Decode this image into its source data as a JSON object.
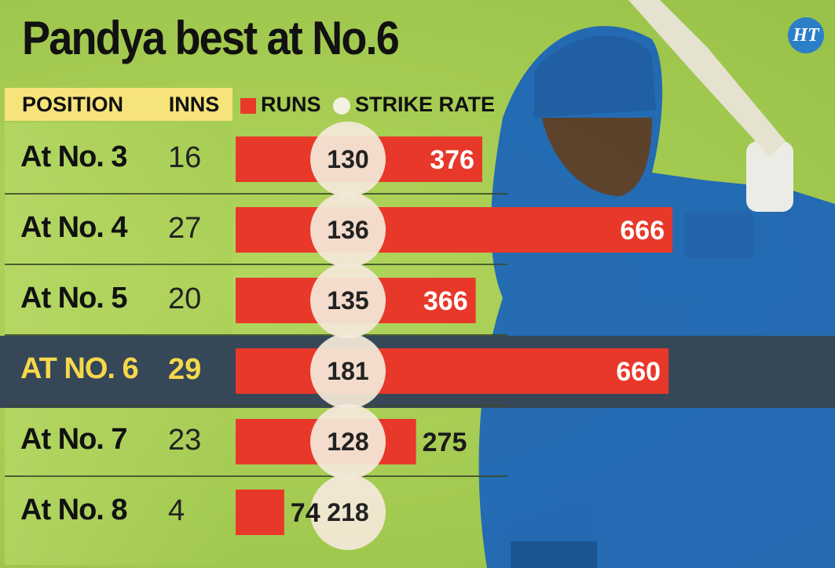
{
  "title": "Pandya best at No.6",
  "logo_text": "HT",
  "headers": {
    "position": "POSITION",
    "inns": "INNS",
    "runs": "RUNS",
    "strike_rate": "STRIKE RATE"
  },
  "colors": {
    "runs_bar": "#e8382a",
    "strike_circle": "#f4e8d8",
    "highlight_band": "#364858",
    "highlight_text": "#f6d84a",
    "header_band": "#f6e37a"
  },
  "rows": [
    {
      "position": "At No. 3",
      "inns": "16"
    },
    {
      "position": "At No. 4",
      "inns": "27"
    },
    {
      "position": "At No. 5",
      "inns": "20"
    },
    {
      "position": "AT NO. 6",
      "inns": "29",
      "highlight": true
    },
    {
      "position": "At No. 7",
      "inns": "23"
    },
    {
      "position": "At No. 8",
      "inns": "4"
    }
  ],
  "chart_data": {
    "type": "bar",
    "orientation": "horizontal",
    "title": "Pandya best at No.6",
    "categories": [
      "At No. 3",
      "At No. 4",
      "At No. 5",
      "AT NO. 6",
      "At No. 7",
      "At No. 8"
    ],
    "series": [
      {
        "name": "RUNS",
        "values": [
          376,
          666,
          366,
          660,
          275,
          74
        ]
      },
      {
        "name": "STRIKE RATE",
        "values": [
          130,
          136,
          135,
          181,
          128,
          218
        ]
      }
    ],
    "innings": [
      16,
      27,
      20,
      29,
      23,
      4
    ],
    "highlighted_category": "AT NO. 6",
    "legend": "top",
    "grid": false
  }
}
